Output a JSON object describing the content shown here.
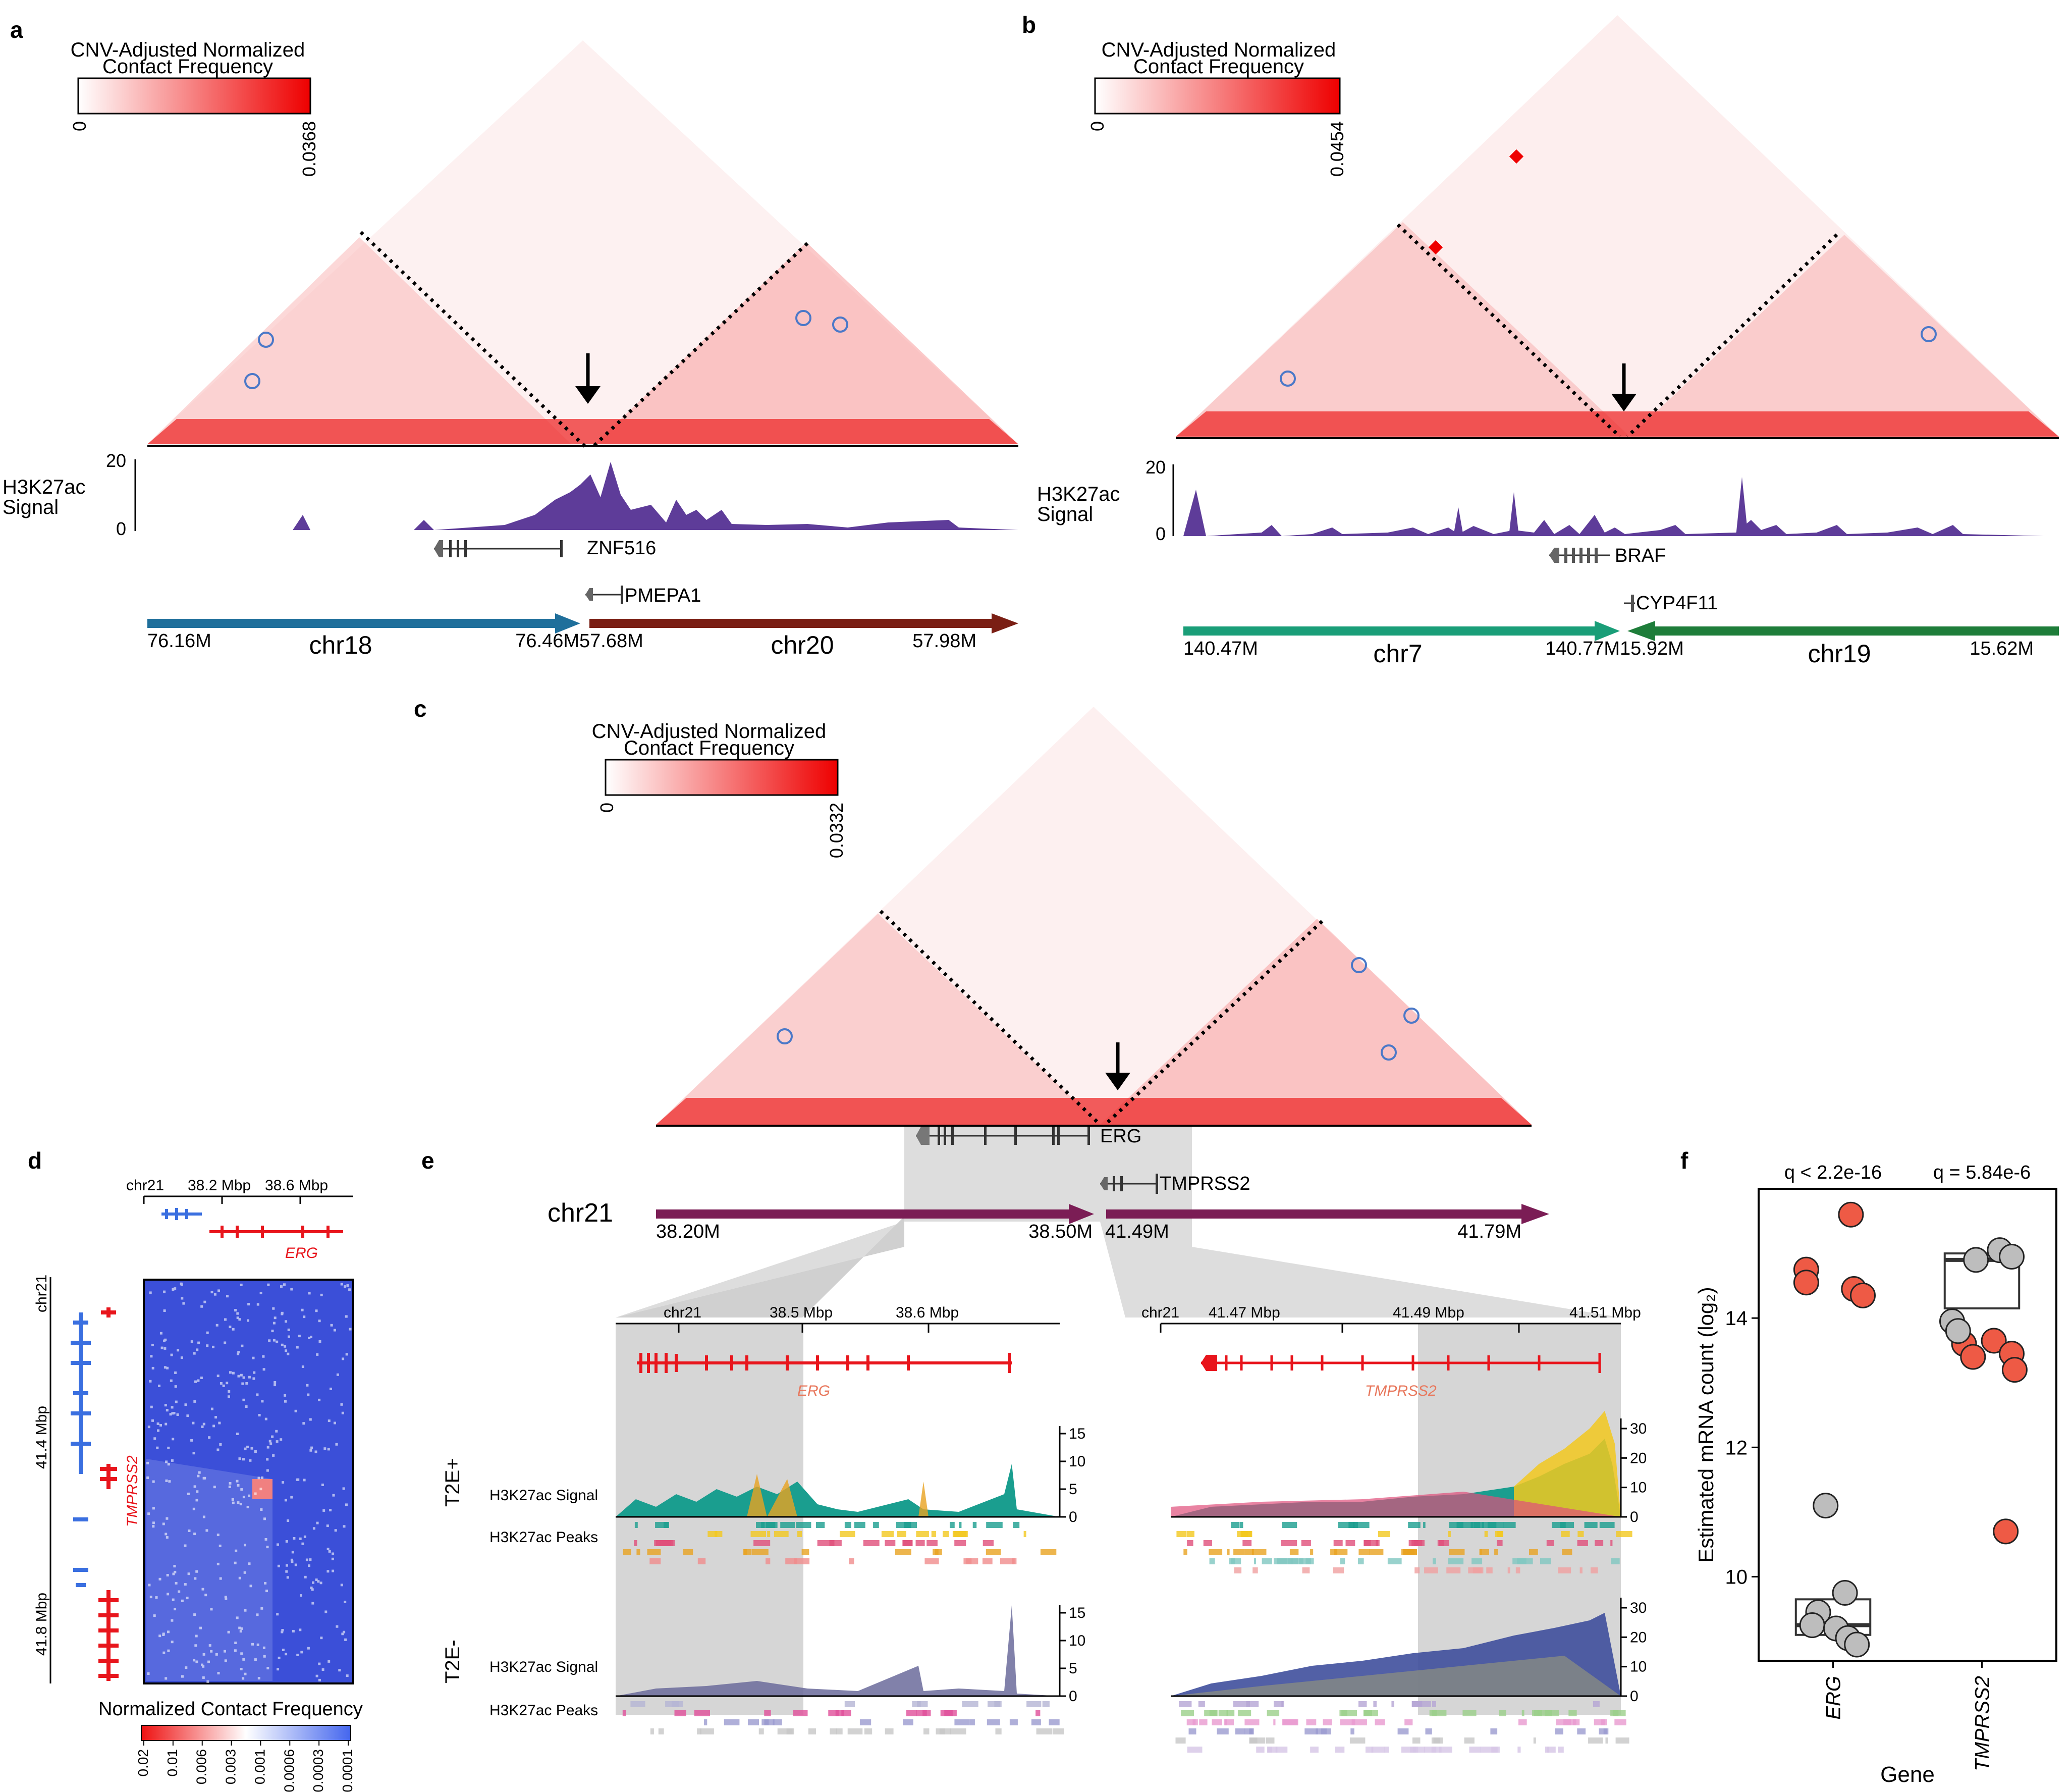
{
  "panel_labels": [
    "a",
    "b",
    "c",
    "d",
    "e",
    "f"
  ],
  "colorbar_title_line1": "CNV-Adjusted Normalized",
  "colorbar_title_line2": "Contact Frequency",
  "colors": {
    "heat_red": "#ee0000",
    "arrow_chr18": "#1f6f9b",
    "arrow_chr20": "#7a1e14",
    "arrow_chr7": "#1a9e78",
    "arrow_chr19": "#1e7d3a",
    "arrow_chr21": "#7b1d55",
    "signal_purple": "#5e3c99",
    "point_red": "#ee5a45",
    "point_grey": "#bdbdbd",
    "gene_red": "#e8151c",
    "gene_blue": "#3a6fe0",
    "heatmap_blue": "#3b4fd8"
  },
  "panel_a": {
    "colorbar_min": "0",
    "colorbar_max": "0.0368",
    "signal_label_line1": "H3K27ac",
    "signal_label_line2": "Signal",
    "signal_max": "20",
    "signal_min": "0",
    "gene1": "ZNF516",
    "gene2": "PMEPA1",
    "chrA": "chr18",
    "chrA_start": "76.16M",
    "chrA_end": "76.46M",
    "chrB": "chr20",
    "chrB_start": "57.68M",
    "chrB_end": "57.98M"
  },
  "panel_b": {
    "colorbar_min": "0",
    "colorbar_max": "0.0454",
    "signal_label_line1": "H3K27ac",
    "signal_label_line2": "Signal",
    "signal_max": "20",
    "signal_min": "0",
    "gene1": "BRAF",
    "gene2": "CYP4F11",
    "chrA": "chr7",
    "chrA_start": "140.47M",
    "chrA_end": "140.77M",
    "chrB": "chr19",
    "chrB_start": "15.92M",
    "chrB_end": "15.62M"
  },
  "panel_c": {
    "colorbar_min": "0",
    "colorbar_max": "0.0332",
    "gene1": "ERG",
    "gene2": "TMPRSS2",
    "chr": "chr21",
    "seg1_start": "38.20M",
    "seg1_end": "38.50M",
    "seg2_start": "41.49M",
    "seg2_end": "41.79M"
  },
  "panel_d": {
    "top_axis": [
      "chr21",
      "38.2 Mbp",
      "38.6 Mbp"
    ],
    "left_axis": [
      "chr21",
      "41.4 Mbp",
      "41.8 Mbp"
    ],
    "gene_top": "ERG",
    "gene_left": "TMPRSS2",
    "legend_title": "Normalized Contact Frequency",
    "legend_ticks": [
      "0.02",
      "0.01",
      "0.006",
      "0.003",
      "0.001",
      "0.0006",
      "0.0003",
      "0.0001"
    ]
  },
  "panel_e": {
    "left_axis": [
      "chr21",
      "38.5 Mbp",
      "38.6 Mbp"
    ],
    "right_axis": [
      "chr21",
      "41.47 Mbp",
      "41.49 Mbp",
      "41.51 Mbp"
    ],
    "gene_left": "ERG",
    "gene_right": "TMPRSS2",
    "group1": "T2E+",
    "group2": "T2E-",
    "signal_label": "H3K27ac Signal",
    "peaks_label": "H3K27ac Peaks",
    "left_ticks_top": [
      "15",
      "10",
      "5",
      "0"
    ],
    "left_ticks_bottom": [
      "15",
      "10",
      "5",
      "0"
    ],
    "right_ticks_top": [
      "30",
      "20",
      "10",
      "0"
    ],
    "right_ticks_bottom": [
      "30",
      "20",
      "10",
      "0"
    ]
  },
  "chart_data": {
    "type": "scatter",
    "title": "",
    "xlabel": "Gene",
    "ylabel": "Estimated mRNA count (log₂)",
    "categories": [
      "ERG",
      "TMPRSS2"
    ],
    "annotations": [
      "q < 2.2e-16",
      "q = 5.84e-6"
    ],
    "ylim": [
      8.7,
      16
    ],
    "yticks": [
      10,
      12,
      14
    ],
    "series": [
      {
        "name": "T2E+",
        "color": "red",
        "points": [
          {
            "category": "ERG",
            "y": 14.75,
            "jitter": -0.18
          },
          {
            "category": "ERG",
            "y": 14.55,
            "jitter": -0.18
          },
          {
            "category": "ERG",
            "y": 15.6,
            "jitter": 0.12
          },
          {
            "category": "ERG",
            "y": 14.45,
            "jitter": 0.14
          },
          {
            "category": "ERG",
            "y": 14.35,
            "jitter": 0.2
          },
          {
            "category": "TMPRSS2",
            "y": 13.6,
            "jitter": -0.12
          },
          {
            "category": "TMPRSS2",
            "y": 13.4,
            "jitter": -0.06
          },
          {
            "category": "TMPRSS2",
            "y": 13.65,
            "jitter": 0.08
          },
          {
            "category": "TMPRSS2",
            "y": 13.45,
            "jitter": 0.2
          },
          {
            "category": "TMPRSS2",
            "y": 13.2,
            "jitter": 0.22
          },
          {
            "category": "TMPRSS2",
            "y": 10.7,
            "jitter": 0.16
          }
        ]
      },
      {
        "name": "T2E-",
        "color": "grey",
        "points": [
          {
            "category": "ERG",
            "y": 11.1,
            "jitter": -0.05
          },
          {
            "category": "ERG",
            "y": 9.75,
            "jitter": 0.08
          },
          {
            "category": "ERG",
            "y": 9.45,
            "jitter": -0.1
          },
          {
            "category": "ERG",
            "y": 9.25,
            "jitter": -0.14
          },
          {
            "category": "ERG",
            "y": 9.2,
            "jitter": 0.02
          },
          {
            "category": "ERG",
            "y": 9.05,
            "jitter": 0.1
          },
          {
            "category": "ERG",
            "y": 8.95,
            "jitter": 0.16
          },
          {
            "category": "TMPRSS2",
            "y": 14.9,
            "jitter": -0.04
          },
          {
            "category": "TMPRSS2",
            "y": 15.05,
            "jitter": 0.12
          },
          {
            "category": "TMPRSS2",
            "y": 14.95,
            "jitter": 0.2
          },
          {
            "category": "TMPRSS2",
            "y": 13.95,
            "jitter": -0.2
          },
          {
            "category": "TMPRSS2",
            "y": 13.8,
            "jitter": -0.16
          }
        ]
      }
    ],
    "boxes": [
      {
        "category": "ERG",
        "q1": 9.1,
        "median": 9.25,
        "q3": 9.65
      },
      {
        "category": "TMPRSS2",
        "q1": 14.15,
        "median": 14.9,
        "q3": 15.0
      }
    ]
  }
}
